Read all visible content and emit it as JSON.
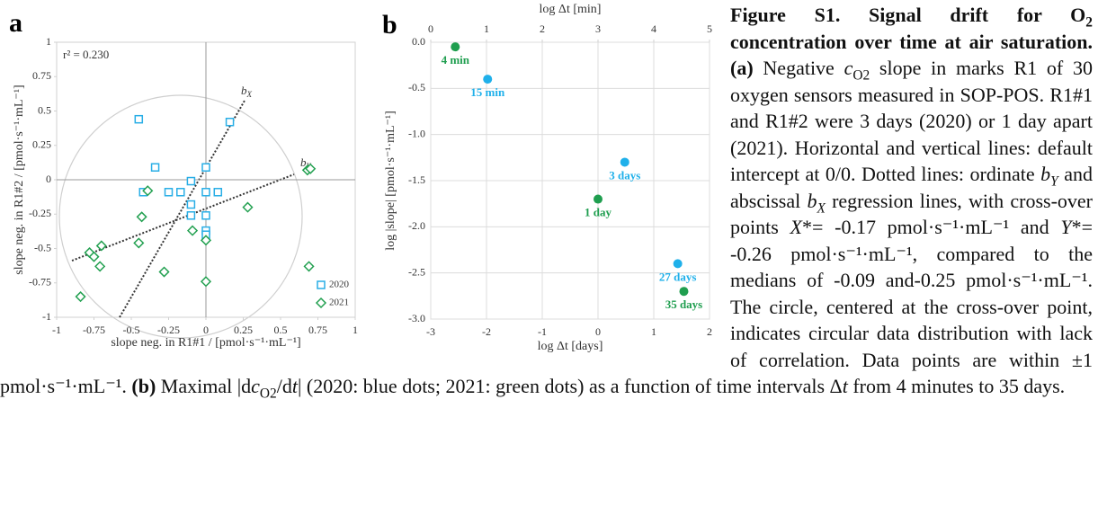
{
  "chart_data": [
    {
      "type": "scatter",
      "panel_label": "a",
      "annotation": "r² = 0.230",
      "xlabel": "slope neg. in R1#1 / [pmol·s⁻¹·mL⁻¹]",
      "ylabel": "slope neg. in R1#2 / [pmol·s⁻¹·mL⁻¹]",
      "regression_labels": [
        {
          "base": "b",
          "sub": "X"
        },
        {
          "base": "b",
          "sub": "Y"
        }
      ],
      "xlim": [
        -1,
        1
      ],
      "ylim": [
        -1,
        1
      ],
      "xticks": [
        -1,
        -0.75,
        -0.5,
        -0.25,
        0,
        0.25,
        0.5,
        0.75,
        1
      ],
      "yticks": [
        -1,
        -0.75,
        -0.5,
        -0.25,
        0,
        0.25,
        0.5,
        0.75,
        1
      ],
      "grid": false,
      "legend": "lower right",
      "series": [
        {
          "name": "2020",
          "color": "#29aee6",
          "marker": "square",
          "x": [
            -0.45,
            0.16,
            -0.34,
            0,
            -0.1,
            -0.42,
            -0.25,
            -0.17,
            0,
            0.08,
            -0.1,
            -0.1,
            0,
            0,
            0
          ],
          "values": [
            0.44,
            0.42,
            0.09,
            0.09,
            -0.01,
            -0.09,
            -0.09,
            -0.09,
            -0.09,
            -0.09,
            -0.18,
            -0.26,
            -0.26,
            -0.37,
            -0.4
          ]
        },
        {
          "name": "2021",
          "color": "#22a050",
          "marker": "diamond",
          "x": [
            -0.39,
            0.68,
            0.7,
            -0.43,
            0.28,
            -0.09,
            0,
            -0.45,
            -0.7,
            -0.78,
            -0.75,
            -0.71,
            -0.28,
            0.69,
            0,
            -0.84
          ],
          "values": [
            -0.08,
            0.07,
            0.08,
            -0.27,
            -0.2,
            -0.37,
            -0.44,
            -0.46,
            -0.48,
            -0.53,
            -0.56,
            -0.63,
            -0.67,
            -0.63,
            -0.74,
            -0.85
          ]
        }
      ]
    },
    {
      "type": "scatter",
      "panel_label": "b",
      "xlabel": "log Δt [days]",
      "x2label": "log Δt [min]",
      "ylabel": "log |slope| [pmol·s⁻¹·mL⁻¹]",
      "xlim": [
        -3,
        2
      ],
      "xticks": [
        -3,
        -2,
        -1,
        0,
        1,
        2
      ],
      "x2lim": [
        0,
        5
      ],
      "x2ticks": [
        0,
        1,
        2,
        3,
        4,
        5
      ],
      "ylim": [
        -3,
        0
      ],
      "yticks": [
        {
          "value": 0,
          "label": "0.0"
        },
        -0.5,
        {
          "value": -1,
          "label": "-1.0"
        },
        -1.5,
        {
          "value": -2,
          "label": "-2.0"
        },
        -2.5,
        {
          "value": -3,
          "label": "-3.0"
        }
      ],
      "grid": true,
      "series": [
        {
          "name": "2020",
          "color": "#1fb0ea",
          "marker": "circle",
          "x": [
            -1.98,
            0.48,
            1.43
          ],
          "values": [
            -0.4,
            -1.3,
            -2.4
          ],
          "point_labels": [
            "15 min",
            "3 days",
            "27 days"
          ]
        },
        {
          "name": "2021",
          "color": "#1f9e4f",
          "marker": "circle",
          "x": [
            -2.56,
            0,
            1.54
          ],
          "values": [
            -0.05,
            -1.7,
            -2.7
          ],
          "point_labels": [
            "4 min",
            "1 day",
            "35 days"
          ]
        }
      ]
    }
  ],
  "caption": {
    "segments": [
      "Figure S1. Signal drift for O",
      "2",
      " concentration over time at air saturation. (a)",
      " Negative ",
      "c",
      "O2",
      " slope in marks R1 of 30 oxygen sensors measured in SOP-POS. R1#1 and R1#2 were 3 days (2020) or 1 day apart  (2021). Horizontal and vertical lines: default intercept at 0/0. Dotted lines: ordinate ",
      "b",
      "Y",
      " and abscissal ",
      "b",
      "X",
      " regression lines, with cross-over points ",
      "X",
      "*= -0.17 pmol·s⁻¹·mL⁻¹ and ",
      "Y",
      "*= -0.26 pmol·s⁻¹·mL⁻¹, compared to the medians of -0.09 and-0.25 pmol·s⁻¹·mL⁻¹. The circle, centered at the cross-over point, indicates circular data distribution with lack of correlation. Data points are within ±1 pmol·s⁻¹·mL⁻¹. ",
      "(b)",
      " Maximal |d",
      "c",
      "O2",
      "/d",
      "t",
      "| (2020: blue dots; 2021: green dots) as a function of time intervals Δ",
      "t",
      " from 4 minutes to 35 days."
    ]
  }
}
